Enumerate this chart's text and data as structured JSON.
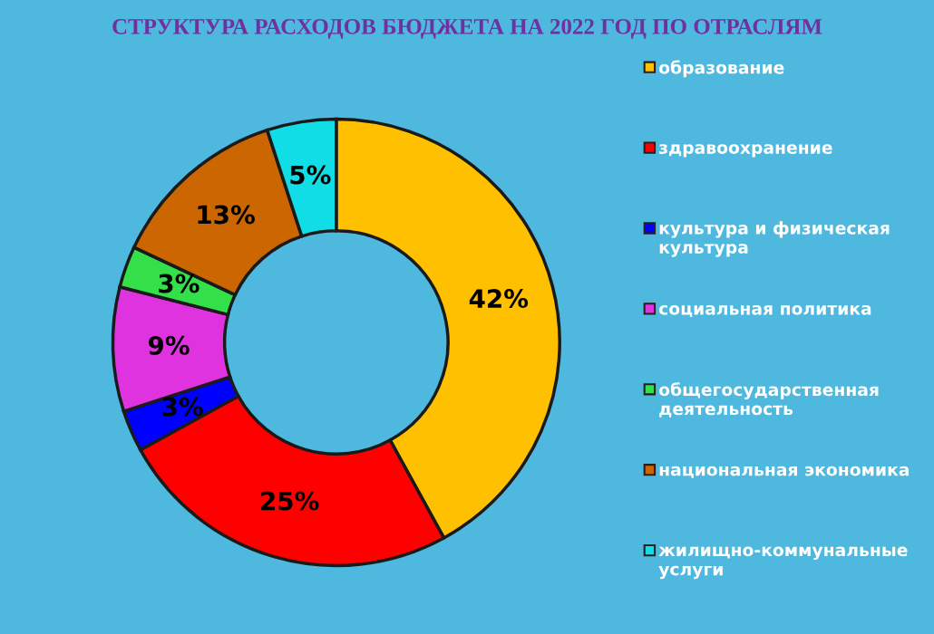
{
  "chart_data": {
    "type": "donut",
    "title": "СТРУКТУРА РАСХОДОВ БЮДЖЕТА НА 2022 ГОД ПО ОТРАСЛЯМ",
    "categories": [
      "образование",
      "здравоохранение",
      "культура и физическая культура",
      "социальная политика",
      "общегосударственная деятельность",
      "национальная экономика",
      "жилищно-коммунальные услуги"
    ],
    "values": [
      42,
      25,
      3,
      9,
      3,
      13,
      5
    ],
    "value_labels": [
      "42%",
      "25%",
      "3%",
      "9%",
      "3%",
      "13%",
      "5%"
    ],
    "colors": [
      "#ffc000",
      "#ff0000",
      "#0000ff",
      "#e033e0",
      "#33e04a",
      "#cc6600",
      "#11dde6"
    ],
    "legend": "right"
  }
}
